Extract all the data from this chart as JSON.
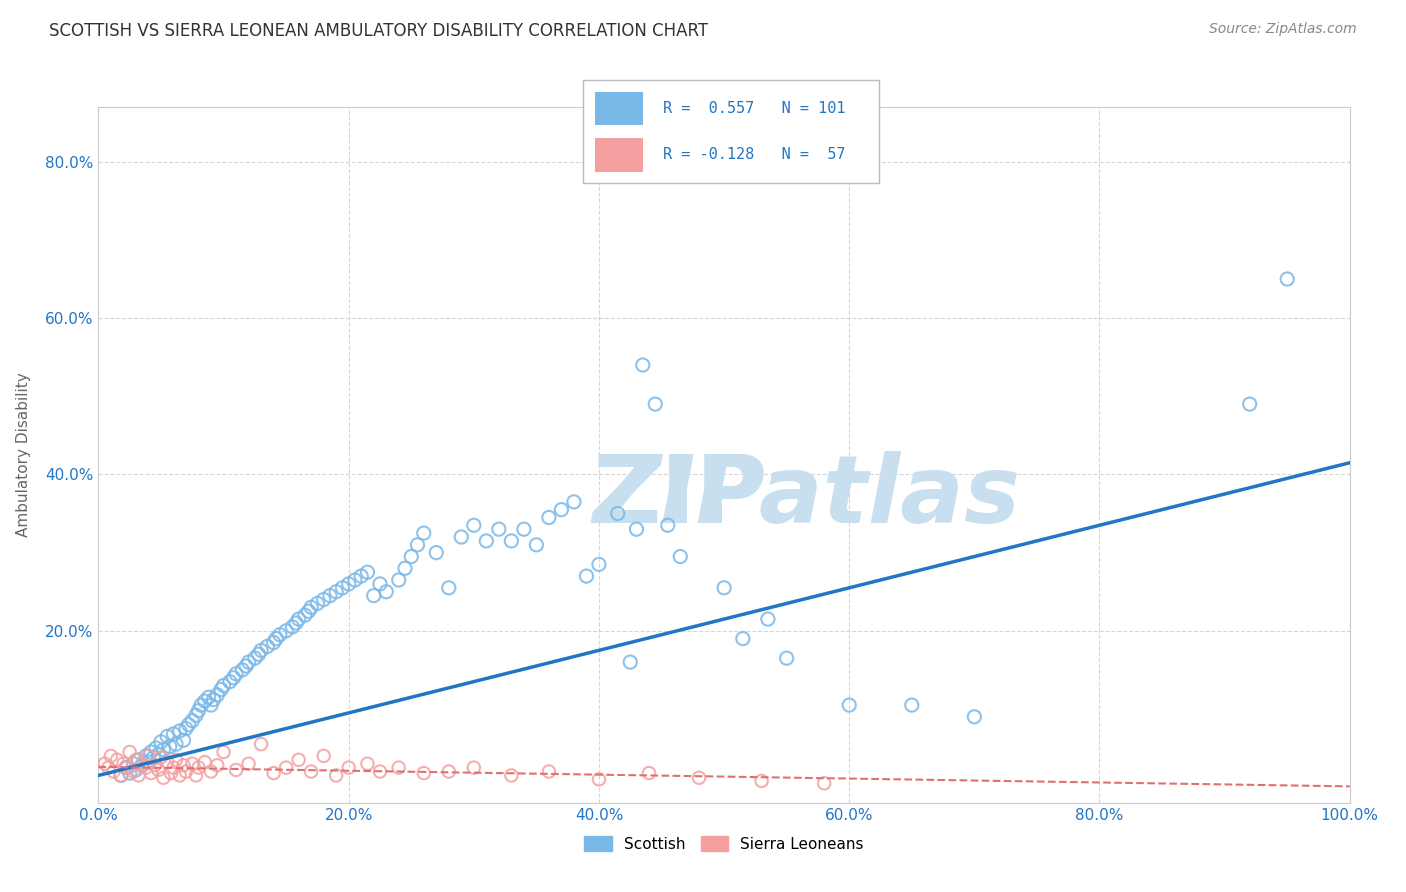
{
  "title": "SCOTTISH VS SIERRA LEONEAN AMBULATORY DISABILITY CORRELATION CHART",
  "source": "Source: ZipAtlas.com",
  "ylabel": "Ambulatory Disability",
  "xlim": [
    0.0,
    1.0
  ],
  "ylim": [
    -0.02,
    0.87
  ],
  "xtick_labels": [
    "0.0%",
    "20.0%",
    "40.0%",
    "60.0%",
    "80.0%",
    "100.0%"
  ],
  "xtick_vals": [
    0.0,
    0.2,
    0.4,
    0.6,
    0.8,
    1.0
  ],
  "ytick_labels": [
    "20.0%",
    "40.0%",
    "60.0%",
    "80.0%"
  ],
  "ytick_vals": [
    0.2,
    0.4,
    0.6,
    0.8
  ],
  "r1": 0.557,
  "n1": 101,
  "r2": -0.128,
  "n2": 57,
  "scottish_color": "#7ab8e8",
  "sierra_color": "#f4a0a0",
  "trendline1_color": "#2176c7",
  "trendline2_color": "#e07070",
  "background_color": "#ffffff",
  "grid_color": "#cccccc",
  "title_color": "#333333",
  "watermark_zip_color": "#c8dff0",
  "watermark_atlas_color": "#c8dff0",
  "scottish_x": [
    0.018,
    0.022,
    0.025,
    0.028,
    0.03,
    0.032,
    0.035,
    0.038,
    0.04,
    0.042,
    0.044,
    0.046,
    0.048,
    0.05,
    0.052,
    0.055,
    0.057,
    0.06,
    0.062,
    0.065,
    0.068,
    0.07,
    0.072,
    0.075,
    0.078,
    0.08,
    0.082,
    0.085,
    0.088,
    0.09,
    0.092,
    0.095,
    0.098,
    0.1,
    0.105,
    0.108,
    0.11,
    0.115,
    0.118,
    0.12,
    0.125,
    0.128,
    0.13,
    0.135,
    0.14,
    0.142,
    0.145,
    0.15,
    0.155,
    0.158,
    0.16,
    0.165,
    0.168,
    0.17,
    0.175,
    0.18,
    0.185,
    0.19,
    0.195,
    0.2,
    0.205,
    0.21,
    0.215,
    0.22,
    0.225,
    0.23,
    0.24,
    0.245,
    0.25,
    0.255,
    0.26,
    0.27,
    0.28,
    0.29,
    0.3,
    0.31,
    0.32,
    0.33,
    0.34,
    0.35,
    0.36,
    0.37,
    0.38,
    0.39,
    0.4,
    0.415,
    0.425,
    0.435,
    0.445,
    0.455,
    0.465,
    0.5,
    0.515,
    0.535,
    0.55,
    0.43,
    0.6,
    0.65,
    0.7,
    0.92,
    0.95
  ],
  "scottish_y": [
    0.015,
    0.025,
    0.018,
    0.03,
    0.022,
    0.035,
    0.028,
    0.04,
    0.032,
    0.045,
    0.038,
    0.05,
    0.042,
    0.058,
    0.048,
    0.065,
    0.052,
    0.068,
    0.055,
    0.072,
    0.06,
    0.075,
    0.08,
    0.085,
    0.092,
    0.098,
    0.105,
    0.11,
    0.115,
    0.105,
    0.112,
    0.118,
    0.125,
    0.13,
    0.135,
    0.14,
    0.145,
    0.15,
    0.155,
    0.16,
    0.165,
    0.17,
    0.175,
    0.18,
    0.185,
    0.19,
    0.195,
    0.2,
    0.205,
    0.21,
    0.215,
    0.22,
    0.225,
    0.23,
    0.235,
    0.24,
    0.245,
    0.25,
    0.255,
    0.26,
    0.265,
    0.27,
    0.275,
    0.245,
    0.26,
    0.25,
    0.265,
    0.28,
    0.295,
    0.31,
    0.325,
    0.3,
    0.255,
    0.32,
    0.335,
    0.315,
    0.33,
    0.315,
    0.33,
    0.31,
    0.345,
    0.355,
    0.365,
    0.27,
    0.285,
    0.35,
    0.16,
    0.54,
    0.49,
    0.335,
    0.295,
    0.255,
    0.19,
    0.215,
    0.165,
    0.33,
    0.105,
    0.105,
    0.09,
    0.49,
    0.65
  ],
  "sierra_x": [
    0.005,
    0.008,
    0.01,
    0.012,
    0.015,
    0.018,
    0.02,
    0.022,
    0.025,
    0.028,
    0.03,
    0.032,
    0.035,
    0.038,
    0.04,
    0.042,
    0.045,
    0.048,
    0.05,
    0.052,
    0.055,
    0.058,
    0.06,
    0.062,
    0.065,
    0.068,
    0.07,
    0.075,
    0.078,
    0.08,
    0.085,
    0.09,
    0.095,
    0.1,
    0.11,
    0.12,
    0.13,
    0.14,
    0.15,
    0.16,
    0.17,
    0.18,
    0.19,
    0.2,
    0.215,
    0.225,
    0.24,
    0.26,
    0.28,
    0.3,
    0.33,
    0.36,
    0.4,
    0.44,
    0.48,
    0.53,
    0.58
  ],
  "sierra_y": [
    0.03,
    0.025,
    0.04,
    0.02,
    0.035,
    0.015,
    0.03,
    0.025,
    0.045,
    0.02,
    0.035,
    0.015,
    0.03,
    0.025,
    0.04,
    0.018,
    0.028,
    0.022,
    0.038,
    0.012,
    0.032,
    0.018,
    0.025,
    0.035,
    0.015,
    0.028,
    0.02,
    0.03,
    0.015,
    0.025,
    0.032,
    0.02,
    0.028,
    0.045,
    0.022,
    0.03,
    0.055,
    0.018,
    0.025,
    0.035,
    0.02,
    0.04,
    0.015,
    0.025,
    0.03,
    0.02,
    0.025,
    0.018,
    0.02,
    0.025,
    0.015,
    0.02,
    0.01,
    0.018,
    0.012,
    0.008,
    0.005
  ],
  "trend1_slope": 0.4,
  "trend1_intercept": 0.015,
  "trend2_slope": -0.025,
  "trend2_intercept": 0.026,
  "legend_label1": "Scottish",
  "legend_label2": "Sierra Leoneans"
}
